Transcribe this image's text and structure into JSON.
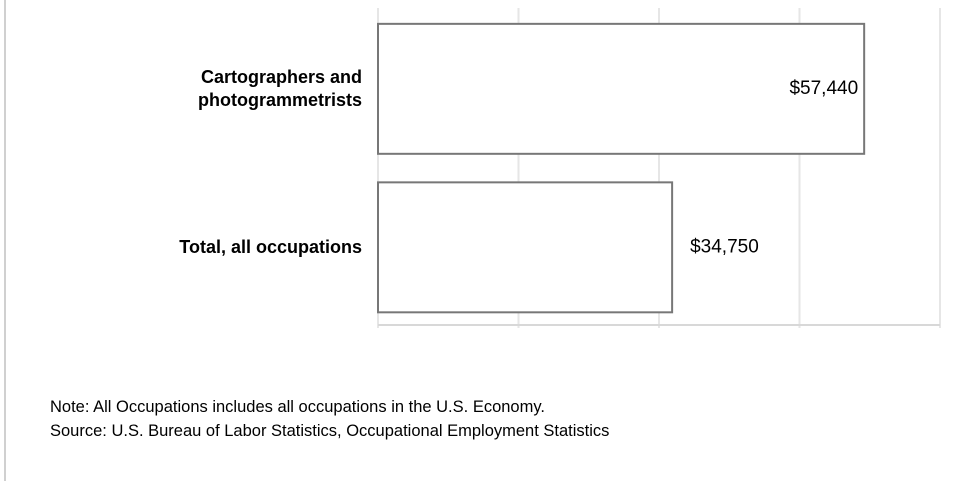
{
  "chart_data": {
    "type": "bar",
    "orientation": "horizontal",
    "categories": [
      "Cartographers and photogrammetrists",
      "Total, all occupations"
    ],
    "values": [
      57440,
      34750
    ],
    "value_labels": [
      "$57,440",
      "$34,750"
    ],
    "color": "#ffffff",
    "edge_color": "#777777",
    "xlim": [
      0,
      66400
    ],
    "xticks": [
      0,
      16600,
      33200,
      49800,
      66400
    ],
    "grid": true,
    "note": "Note: All Occupations includes all occupations in the U.S. Economy.",
    "source": "Source: U.S. Bureau of Labor Statistics, Occupational Employment Statistics"
  }
}
